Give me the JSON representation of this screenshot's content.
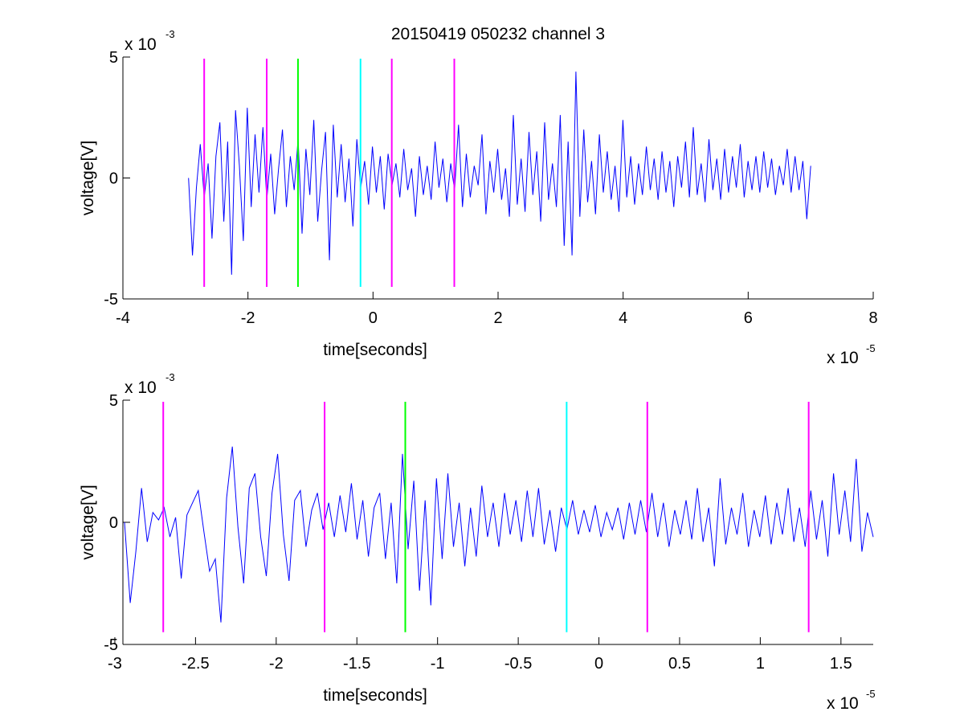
{
  "title": "20150419 050232 channel 3",
  "colors": {
    "trace": "#0000ff",
    "marker_magenta": "#ff00ff",
    "marker_green": "#00ff00",
    "marker_cyan": "#00ffff",
    "axes": "#000000",
    "background": "#ffffff"
  },
  "chart_data": [
    {
      "type": "line",
      "xlabel": "time[seconds]",
      "ylabel": "voltage[V]",
      "x_multiplier": "x 10",
      "x_exponent": "-5",
      "y_multiplier": "x 10",
      "y_exponent": "-3",
      "xlim": [
        -4,
        8
      ],
      "ylim": [
        -5,
        5
      ],
      "xticks": [
        -4,
        -2,
        0,
        2,
        4,
        6,
        8
      ],
      "xtick_labels": [
        "-4",
        "-2",
        "0",
        "2",
        "4",
        "6",
        "8"
      ],
      "yticks": [
        -5,
        0,
        5
      ],
      "ytick_labels": [
        "-5",
        "0",
        "5"
      ],
      "grid": false,
      "series": [
        {
          "color": "#0000ff",
          "x_start": -2.95,
          "x_end": 7.0,
          "y": [
            0.0,
            -3.2,
            -0.4,
            1.4,
            -0.8,
            0.6,
            -2.5,
            0.9,
            2.3,
            -1.8,
            1.5,
            -4.0,
            2.8,
            0.5,
            -2.6,
            2.9,
            -1.2,
            1.8,
            -0.6,
            2.1,
            -0.9,
            1.0,
            -1.5,
            0.4,
            2.0,
            -1.2,
            0.9,
            -0.5,
            1.6,
            -2.3,
            1.2,
            -0.7,
            2.4,
            -1.8,
            0.3,
            1.9,
            -3.4,
            2.2,
            -0.8,
            1.4,
            -1.0,
            0.8,
            -2.0,
            1.6,
            -0.4,
            0.7,
            -1.1,
            1.3,
            -0.6,
            0.9,
            -1.3,
            1.0,
            -0.3,
            0.6,
            -0.8,
            1.2,
            -0.5,
            0.4,
            -1.6,
            0.9,
            -0.7,
            0.5,
            -0.9,
            1.5,
            -0.4,
            0.8,
            -1.0,
            0.6,
            -0.5,
            2.2,
            -1.2,
            1.0,
            -0.8,
            0.5,
            -0.3,
            1.8,
            -1.5,
            0.7,
            -0.6,
            1.2,
            -0.9,
            0.4,
            -1.6,
            2.6,
            -1.1,
            0.8,
            -1.4,
            1.9,
            -0.7,
            1.1,
            -1.8,
            2.3,
            -0.9,
            0.6,
            -1.2,
            2.6,
            -2.8,
            1.5,
            -3.2,
            4.4,
            -1.6,
            2.0,
            -1.0,
            0.7,
            -1.5,
            1.8,
            -0.6,
            1.1,
            -0.9,
            0.5,
            -1.4,
            2.4,
            -0.8,
            0.9,
            -1.1,
            0.6,
            -0.7,
            1.3,
            -0.5,
            0.8,
            -0.9,
            1.1,
            -0.6,
            0.7,
            -1.2,
            0.9,
            -0.4,
            1.5,
            -0.8,
            2.1,
            -0.7,
            0.6,
            -1.0,
            1.6,
            -0.5,
            0.8,
            -0.9,
            1.2,
            -0.6,
            0.9,
            -0.4,
            1.4,
            -0.8,
            0.7,
            -0.5,
            0.9,
            -0.6,
            1.1,
            -0.4,
            0.8,
            -0.7,
            0.5,
            -0.3,
            1.2,
            -0.6,
            0.9,
            -0.5,
            0.7,
            -1.7,
            0.5
          ]
        }
      ],
      "vlines": [
        {
          "x": -2.7,
          "color": "#ff00ff"
        },
        {
          "x": -1.7,
          "color": "#ff00ff"
        },
        {
          "x": -1.2,
          "color": "#00ff00"
        },
        {
          "x": -0.2,
          "color": "#00ffff"
        },
        {
          "x": 0.3,
          "color": "#ff00ff"
        },
        {
          "x": 1.3,
          "color": "#ff00ff"
        }
      ]
    },
    {
      "type": "line",
      "xlabel": "time[seconds]",
      "ylabel": "voltage[V]",
      "x_multiplier": "x 10",
      "x_exponent": "-5",
      "y_multiplier": "x 10",
      "y_exponent": "-3",
      "xlim": [
        -2.95,
        1.7
      ],
      "ylim": [
        -5,
        5
      ],
      "xticks": [
        -3,
        -2.5,
        -2,
        -1.5,
        -1,
        -0.5,
        0,
        0.5,
        1,
        1.5
      ],
      "xtick_labels": [
        "-3",
        "-2.5",
        "-2",
        "-1.5",
        "-1",
        "-0.5",
        "0",
        "0.5",
        "1",
        "1.5"
      ],
      "yticks": [
        -5,
        0,
        5
      ],
      "ytick_labels": [
        "-5",
        "0",
        "5"
      ],
      "grid": false,
      "series": [
        {
          "color": "#0000ff",
          "x_start": -2.94,
          "x_end": 1.7,
          "y": [
            0.0,
            -3.3,
            -1.2,
            1.4,
            -0.8,
            0.4,
            0.1,
            0.6,
            -0.6,
            0.2,
            -2.3,
            0.3,
            0.8,
            1.3,
            -0.4,
            -2.0,
            -1.5,
            -4.1,
            1.0,
            3.1,
            -0.2,
            -2.5,
            1.4,
            2.0,
            -0.6,
            -2.2,
            1.2,
            2.8,
            -0.5,
            -2.4,
            0.9,
            1.3,
            -1.0,
            0.5,
            1.2,
            -0.3,
            0.8,
            -0.6,
            1.1,
            -0.4,
            1.6,
            -0.7,
            0.9,
            -1.4,
            0.6,
            1.2,
            -1.5,
            0.8,
            -2.5,
            2.8,
            -1.1,
            1.7,
            -2.8,
            0.9,
            -3.4,
            1.8,
            -1.5,
            2.0,
            -1.0,
            0.8,
            -1.8,
            0.6,
            -1.4,
            1.5,
            -0.6,
            0.8,
            -1.0,
            1.2,
            -0.5,
            0.9,
            -0.8,
            1.3,
            -0.6,
            1.4,
            -0.9,
            0.5,
            -1.2,
            0.6,
            -0.3,
            0.9,
            -0.5,
            0.5,
            -0.4,
            0.7,
            -0.6,
            0.4,
            -0.3,
            0.6,
            -0.7,
            0.8,
            -0.5,
            0.9,
            -0.4,
            1.2,
            -0.6,
            0.8,
            -1.0,
            0.5,
            -0.5,
            0.9,
            -0.7,
            1.4,
            -0.8,
            0.6,
            -1.8,
            1.8,
            -0.9,
            0.6,
            -0.5,
            1.2,
            -1.0,
            0.5,
            -0.6,
            1.1,
            -0.9,
            0.8,
            -0.5,
            1.4,
            -0.8,
            0.6,
            -1.0,
            1.3,
            -0.7,
            0.9,
            -1.4,
            2.0,
            -0.5,
            1.3,
            -0.8,
            2.6,
            -1.2,
            0.4,
            -0.6
          ]
        }
      ],
      "vlines": [
        {
          "x": -2.7,
          "color": "#ff00ff"
        },
        {
          "x": -1.7,
          "color": "#ff00ff"
        },
        {
          "x": -1.2,
          "color": "#00ff00"
        },
        {
          "x": -0.2,
          "color": "#00ffff"
        },
        {
          "x": 0.3,
          "color": "#ff00ff"
        },
        {
          "x": 1.3,
          "color": "#ff00ff"
        }
      ]
    }
  ]
}
